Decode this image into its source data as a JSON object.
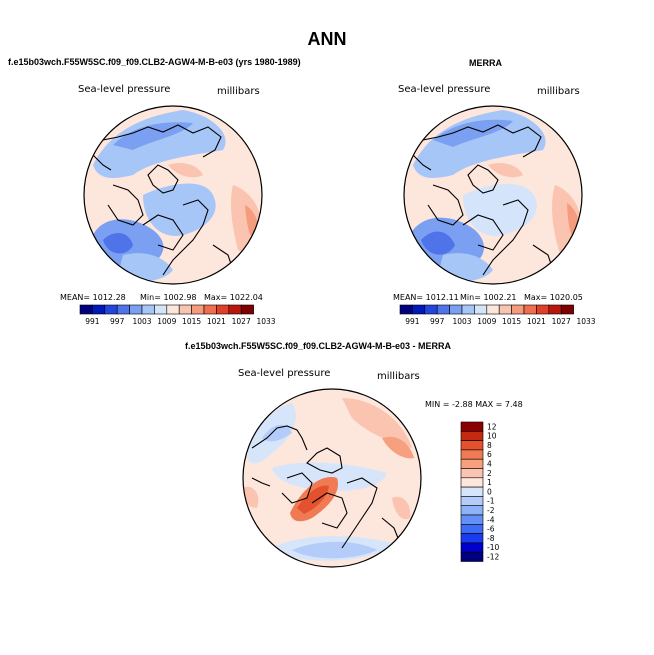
{
  "main_title": "ANN",
  "panels": [
    {
      "case_title": "f.e15b03wch.F55W5SC.f09_f09.CLB2-AGW4-M-B-e03 (yrs 1980-1989)",
      "variable": "Sea-level pressure",
      "units": "millibars",
      "mean_label": "MEAN= 1012.28",
      "min_label": "Min= 1002.98",
      "max_label": "Max= 1022.04"
    },
    {
      "case_title": "MERRA",
      "variable": "Sea-level pressure",
      "units": "millibars",
      "mean_label": "MEAN= 1012.11",
      "min_label": "Min= 1002.21",
      "max_label": "Max= 1020.05"
    },
    {
      "case_title": "f.e15b03wch.F55W5SC.f09_f09.CLB2-AGW4-M-B-e03 - MERRA",
      "variable": "Sea-level pressure",
      "units": "millibars",
      "minmax_label": "MIN =  -2.88 MAX =   7.48"
    }
  ],
  "colors": {
    "abs_scale": [
      "#00007f",
      "#0018b8",
      "#2445d9",
      "#4f73e8",
      "#7ba0f2",
      "#a7c6f8",
      "#d3e4fb",
      "#fde6dc",
      "#fbc4b0",
      "#f59b7e",
      "#ee6e4e",
      "#e0402a",
      "#b8160f",
      "#7f0000"
    ],
    "diff_scale": [
      "#00007f",
      "#0000cc",
      "#1a3cf0",
      "#3e6bf5",
      "#6290f7",
      "#8eb2f8",
      "#b4ccf9",
      "#d7e5fb",
      "#fde6dc",
      "#fbc4b0",
      "#f7a080",
      "#f07a54",
      "#e4512d",
      "#c42a10",
      "#8a0000"
    ],
    "outline": "#000000"
  },
  "chart_data": [
    {
      "type": "heatmap",
      "title": "f.e15b03wch.F55W5SC.f09_f09.CLB2-AGW4-M-B-e03 (yrs 1980-1989)",
      "variable": "Sea-level pressure",
      "units": "millibars",
      "projection": "north polar stereographic",
      "colorbar_ticks": [
        "991",
        "997",
        "1003",
        "1009",
        "1015",
        "1021",
        "1027",
        "1033"
      ],
      "mean": 1012.28,
      "min": 1002.98,
      "max": 1022.04
    },
    {
      "type": "heatmap",
      "title": "MERRA",
      "variable": "Sea-level pressure",
      "units": "millibars",
      "projection": "north polar stereographic",
      "colorbar_ticks": [
        "991",
        "997",
        "1003",
        "1009",
        "1015",
        "1021",
        "1027",
        "1033"
      ],
      "mean": 1012.11,
      "min": 1002.21,
      "max": 1020.05
    },
    {
      "type": "heatmap",
      "title": "f.e15b03wch.F55W5SC.f09_f09.CLB2-AGW4-M-B-e03 - MERRA",
      "variable": "Sea-level pressure",
      "units": "millibars",
      "projection": "north polar stereographic",
      "colorbar_ticks": [
        "12",
        "10",
        "8",
        "6",
        "4",
        "2",
        "1",
        "0",
        "-1",
        "-2",
        "-4",
        "-6",
        "-8",
        "-10",
        "-12"
      ],
      "min": -2.88,
      "max": 7.48
    }
  ]
}
